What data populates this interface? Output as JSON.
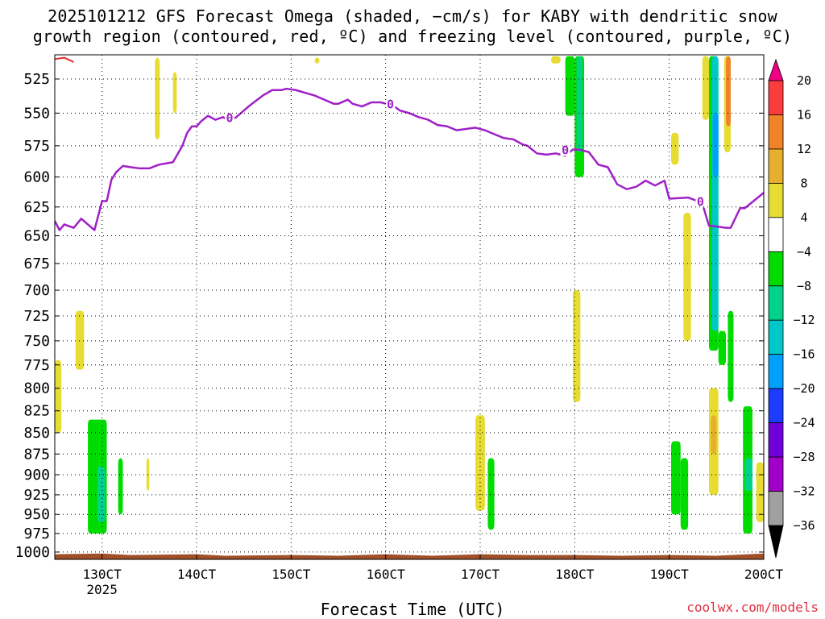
{
  "title_line1": "2025101212 GFS Forecast Omega (shaded, −cm/s) for KABY with dendritic snow",
  "title_line2": "growth region (contoured, red, ºC) and freezing level (contoured, purple, ºC)",
  "credit": "coolwx.com/models",
  "chart_data": {
    "type": "heatmap",
    "xlabel": "Forecast Time (UTC)",
    "x_ticks": [
      "130CT",
      "140CT",
      "150CT",
      "160CT",
      "170CT",
      "180CT",
      "190CT",
      "200CT"
    ],
    "x_tick_values": [
      13.0,
      14.0,
      15.0,
      16.0,
      17.0,
      18.0,
      19.0,
      20.0
    ],
    "x_tick_sublabel": "2025",
    "xlim": [
      12.5,
      20.0
    ],
    "y_ticks": [
      525,
      550,
      575,
      600,
      625,
      650,
      675,
      700,
      725,
      750,
      775,
      800,
      825,
      850,
      875,
      900,
      925,
      950,
      975,
      1000
    ],
    "ylim": [
      508,
      1010
    ],
    "y_scale": "log",
    "grid": true,
    "colorbar": {
      "levels": [
        -36,
        -32,
        -28,
        -24,
        -20,
        -16,
        -12,
        -8,
        -4,
        4,
        8,
        12,
        16,
        20
      ],
      "colors": [
        "#a0a0a0",
        "#a000c8",
        "#6e00dc",
        "#1e3cff",
        "#00a0ff",
        "#00c8c8",
        "#00d28c",
        "#00dc00",
        "#ffffff",
        "#e6dc32",
        "#e6af2d",
        "#f08228",
        "#fa3c3c",
        "#f00082"
      ],
      "under_color": "#000000",
      "over_color": "#f00082"
    },
    "freezing_level": {
      "label": "0",
      "color": "#a020c8",
      "x": [
        12.5,
        12.55,
        12.6,
        12.7,
        12.78,
        12.85,
        12.92,
        13.0,
        13.05,
        13.1,
        13.15,
        13.22,
        13.3,
        13.4,
        13.5,
        13.6,
        13.75,
        13.85,
        13.9,
        13.95,
        14.0,
        14.05,
        14.12,
        14.2,
        14.28,
        14.35,
        14.42,
        14.55,
        14.7,
        14.8,
        14.9,
        14.95,
        15.05,
        15.15,
        15.25,
        15.35,
        15.45,
        15.5,
        15.6,
        15.65,
        15.75,
        15.85,
        15.95,
        16.0,
        16.05,
        16.15,
        16.25,
        16.35,
        16.45,
        16.55,
        16.65,
        16.75,
        16.85,
        16.95,
        17.05,
        17.15,
        17.25,
        17.35,
        17.45,
        17.5,
        17.6,
        17.7,
        17.8,
        17.9,
        17.98,
        18.05,
        18.15,
        18.25,
        18.35,
        18.45,
        18.55,
        18.65,
        18.75,
        18.85,
        18.95,
        19.0,
        19.2,
        19.3,
        19.35,
        19.42,
        19.6,
        19.65,
        19.75,
        19.8,
        20.0
      ],
      "y": [
        637,
        645,
        640,
        643,
        635,
        640,
        645,
        620,
        620,
        602,
        596,
        591,
        592,
        593,
        593,
        590,
        588,
        575,
        565,
        560,
        560,
        556,
        552,
        555,
        553,
        556,
        553,
        545,
        537,
        533,
        533,
        532,
        533,
        535,
        537,
        540,
        543,
        543,
        540,
        543,
        545,
        542,
        542,
        543,
        543,
        548,
        550,
        553,
        555,
        559,
        560,
        563,
        562,
        561,
        563,
        566,
        569,
        570,
        574,
        575,
        581,
        582,
        581,
        583,
        578,
        578,
        580,
        590,
        592,
        606,
        610,
        608,
        603,
        607,
        603,
        618,
        617,
        620,
        622,
        641,
        643,
        643,
        626,
        626,
        613
      ],
      "markers": [
        [
          14.35,
          553
        ],
        [
          16.05,
          543
        ],
        [
          17.9,
          578
        ],
        [
          19.33,
          620
        ]
      ]
    },
    "dendritic_snow_growth": {
      "color": "#e03030",
      "x": [
        12.5,
        12.6,
        12.7
      ],
      "y": [
        511,
        510,
        513
      ]
    },
    "omega_regions": [
      {
        "x": [
          12.5,
          12.57
        ],
        "y": [
          770,
          850
        ],
        "value": 5
      },
      {
        "x": [
          12.72,
          12.81
        ],
        "y": [
          720,
          780
        ],
        "value": 5
      },
      {
        "x": [
          12.85,
          13.05
        ],
        "y": [
          835,
          975
        ],
        "value": -6
      },
      {
        "x": [
          12.95,
          13.03
        ],
        "y": [
          890,
          960
        ],
        "value": -12
      },
      {
        "x": [
          13.17,
          13.22
        ],
        "y": [
          880,
          950
        ],
        "value": -6
      },
      {
        "x": [
          13.47,
          13.5
        ],
        "y": [
          880,
          920
        ],
        "value": 5
      },
      {
        "x": [
          13.56,
          13.61
        ],
        "y": [
          510,
          570
        ],
        "value": 5
      },
      {
        "x": [
          13.75,
          13.79
        ],
        "y": [
          520,
          550
        ],
        "value": 5
      },
      {
        "x": [
          15.25,
          15.3
        ],
        "y": [
          510,
          514
        ],
        "value": 5
      },
      {
        "x": [
          16.95,
          17.05
        ],
        "y": [
          830,
          945
        ],
        "value": 5
      },
      {
        "x": [
          17.08,
          17.15
        ],
        "y": [
          880,
          970
        ],
        "value": -6
      },
      {
        "x": [
          17.75,
          17.85
        ],
        "y": [
          509,
          514
        ],
        "value": 5
      },
      {
        "x": [
          17.9,
          18.0
        ],
        "y": [
          509,
          552
        ],
        "value": -6
      },
      {
        "x": [
          18.0,
          18.1
        ],
        "y": [
          509,
          600
        ],
        "value": -6
      },
      {
        "x": [
          18.02,
          18.08
        ],
        "y": [
          509,
          580
        ],
        "value": -12
      },
      {
        "x": [
          17.98,
          18.06
        ],
        "y": [
          700,
          815
        ],
        "value": 5
      },
      {
        "x": [
          19.02,
          19.1
        ],
        "y": [
          565,
          590
        ],
        "value": 5
      },
      {
        "x": [
          19.02,
          19.12
        ],
        "y": [
          860,
          950
        ],
        "value": -6
      },
      {
        "x": [
          19.12,
          19.2
        ],
        "y": [
          880,
          970
        ],
        "value": -6
      },
      {
        "x": [
          19.15,
          19.23
        ],
        "y": [
          630,
          750
        ],
        "value": 5
      },
      {
        "x": [
          19.35,
          19.42
        ],
        "y": [
          509,
          555
        ],
        "value": 5
      },
      {
        "x": [
          19.42,
          19.52
        ],
        "y": [
          509,
          760
        ],
        "value": -6
      },
      {
        "x": [
          19.45,
          19.52
        ],
        "y": [
          509,
          740
        ],
        "value": -16
      },
      {
        "x": [
          19.46,
          19.52
        ],
        "y": [
          550,
          600
        ],
        "value": -20
      },
      {
        "x": [
          19.52,
          19.6
        ],
        "y": [
          740,
          775
        ],
        "value": -6
      },
      {
        "x": [
          19.58,
          19.65
        ],
        "y": [
          509,
          580
        ],
        "value": 5
      },
      {
        "x": [
          19.6,
          19.65
        ],
        "y": [
          509,
          560
        ],
        "value": 12
      },
      {
        "x": [
          19.62,
          19.68
        ],
        "y": [
          720,
          815
        ],
        "value": -6
      },
      {
        "x": [
          19.42,
          19.52
        ],
        "y": [
          800,
          925
        ],
        "value": 5
      },
      {
        "x": [
          19.44,
          19.5
        ],
        "y": [
          830,
          875
        ],
        "value": 10
      },
      {
        "x": [
          19.78,
          19.88
        ],
        "y": [
          820,
          975
        ],
        "value": -6
      },
      {
        "x": [
          19.8,
          19.88
        ],
        "y": [
          880,
          920
        ],
        "value": -12
      },
      {
        "x": [
          19.92,
          20.0
        ],
        "y": [
          885,
          960
        ],
        "value": 5
      }
    ],
    "terrain": {
      "color": "#a05028",
      "pressure_base": 1010,
      "x": [
        12.5,
        13.0,
        13.3,
        14.0,
        14.3,
        15.0,
        15.5,
        16.0,
        16.5,
        17.0,
        17.5,
        18.0,
        18.5,
        19.0,
        19.5,
        20.0
      ],
      "y": [
        1003,
        1002,
        1004,
        1003,
        1005,
        1004,
        1005,
        1003,
        1005,
        1003,
        1004,
        1004,
        1005,
        1004,
        1005,
        1002
      ]
    }
  }
}
